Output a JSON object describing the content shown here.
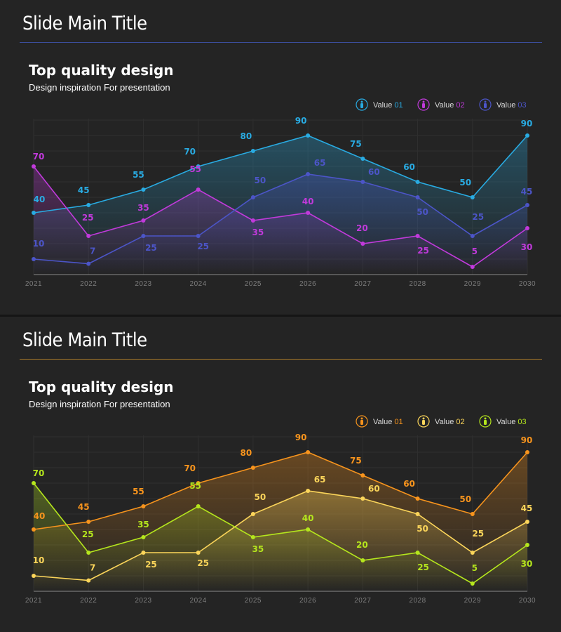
{
  "slides": [
    {
      "title": "Slide Main Title",
      "heading": "Top quality design",
      "subheading": "Design inspiration For presentation",
      "rule_color": "#3b4d9a",
      "chart_data": {
        "type": "line",
        "x": [
          "2021",
          "2022",
          "2023",
          "2024",
          "2025",
          "2026",
          "2027",
          "2028",
          "2029",
          "2030"
        ],
        "ylim": [
          0,
          100
        ],
        "grid": true,
        "legend": "top-right",
        "series": [
          {
            "name": "Value 01",
            "color": "#29abe2",
            "icon": "person-icon",
            "values": [
              40,
              45,
              55,
              70,
              80,
              90,
              75,
              60,
              50,
              90
            ]
          },
          {
            "name": "Value 02",
            "color": "#c13adb",
            "icon": "person-icon",
            "values": [
              70,
              25,
              35,
              55,
              35,
              40,
              20,
              25,
              5,
              30
            ]
          },
          {
            "name": "Value 03",
            "color": "#4c55c8",
            "icon": "person-icon",
            "values": [
              10,
              7,
              25,
              25,
              50,
              65,
              60,
              50,
              25,
              45
            ]
          }
        ]
      }
    },
    {
      "title": "Slide Main Title",
      "heading": "Top quality design",
      "subheading": "Design inspiration For presentation",
      "rule_color": "#a97a2a",
      "chart_data": {
        "type": "line",
        "x": [
          "2021",
          "2022",
          "2023",
          "2024",
          "2025",
          "2026",
          "2027",
          "2028",
          "2029",
          "2030"
        ],
        "ylim": [
          0,
          100
        ],
        "grid": true,
        "legend": "top-right",
        "series": [
          {
            "name": "Value 01",
            "color": "#f7941d",
            "icon": "person-icon",
            "values": [
              40,
              45,
              55,
              70,
              80,
              90,
              75,
              60,
              50,
              90
            ]
          },
          {
            "name": "Value 02",
            "color": "#fbd55a",
            "icon": "person-icon",
            "values": [
              10,
              7,
              25,
              25,
              50,
              65,
              60,
              50,
              25,
              45
            ]
          },
          {
            "name": "Value 03",
            "color": "#b5e61d",
            "icon": "person-icon",
            "values": [
              70,
              25,
              35,
              55,
              35,
              40,
              20,
              25,
              5,
              30
            ]
          }
        ]
      }
    }
  ]
}
